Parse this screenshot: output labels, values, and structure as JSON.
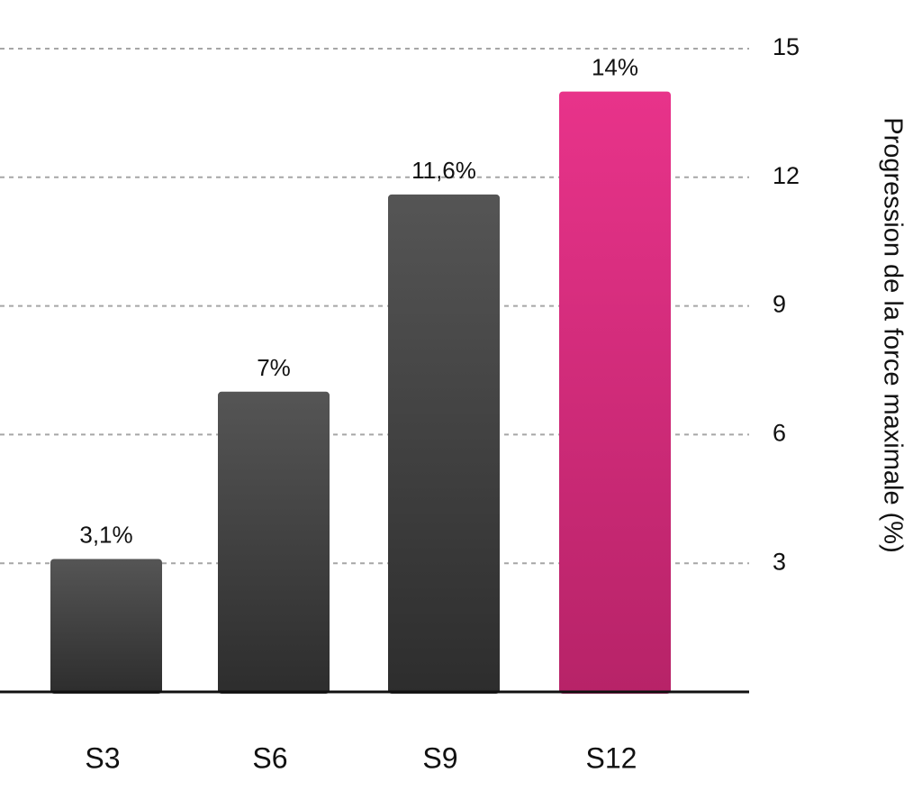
{
  "chart_data": {
    "type": "bar",
    "categories": [
      "S3",
      "S6",
      "S9",
      "S12"
    ],
    "values": [
      3.1,
      7,
      11.6,
      14
    ],
    "value_labels": [
      "3,1%",
      "7%",
      "11,6%",
      "14%"
    ],
    "ylabel": "Progression de la force maximale (%)",
    "yaxis_position": "right",
    "yticks": [
      3,
      6,
      9,
      12,
      15
    ],
    "ylim": [
      0,
      15
    ],
    "grid": true,
    "legend": "none",
    "colors": {
      "default_bar_top": "#555555",
      "default_bar_bottom": "#2d2d2d",
      "highlight_bar_top": "#e8338a",
      "highlight_bar_bottom": "#b72368",
      "highlight_category": "S12"
    }
  }
}
